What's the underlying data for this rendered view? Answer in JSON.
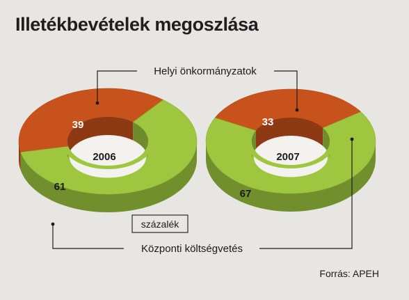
{
  "chart_data": {
    "type": "pie",
    "variant": "3d-donut",
    "title": "Illetékbevételek megoszlása",
    "unit_label": "százalék",
    "source": "Forrás: APEH",
    "categories": [
      "Helyi önkormányzatok",
      "Központi költségvetés"
    ],
    "colors": {
      "Helyi önkormányzatok": "#c8521c",
      "Központi költségvetés": "#9ec63e"
    },
    "charts": [
      {
        "year": "2006",
        "values": [
          39,
          61
        ]
      },
      {
        "year": "2007",
        "values": [
          33,
          67
        ]
      }
    ]
  }
}
